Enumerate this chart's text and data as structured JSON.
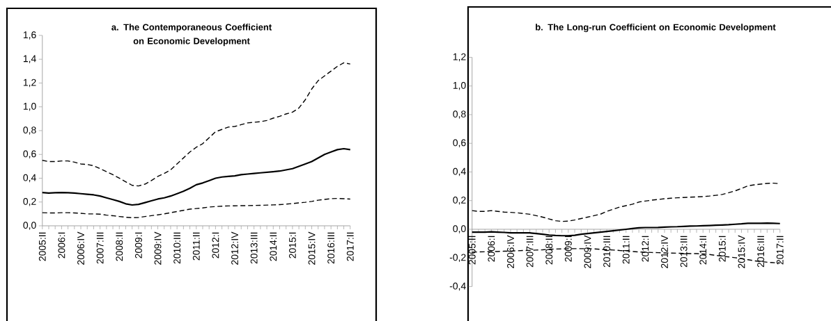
{
  "chart_data": [
    {
      "type": "line",
      "title": "a. The Contemporaneous Coefficient on Economic Development",
      "categories": [
        "2005:II",
        null,
        null,
        "2006:I",
        null,
        null,
        "2006:IV",
        null,
        null,
        "2007:III",
        null,
        null,
        "2008:II",
        null,
        null,
        "2009:I",
        null,
        null,
        "2009:IV",
        null,
        null,
        "2010:III",
        null,
        null,
        "2011:II",
        null,
        null,
        "2012:I",
        null,
        null,
        "2012:IV",
        null,
        null,
        "2013:III",
        null,
        null,
        "2014:II",
        null,
        null,
        "2015:I",
        null,
        null,
        "2015:IV",
        null,
        null,
        "2016:III",
        null,
        null,
        "2017:II"
      ],
      "series": [
        {
          "color": "#000000",
          "line_style": "dashed",
          "values": [
            0.55,
            0.54,
            0.54,
            0.545,
            0.545,
            0.535,
            0.52,
            0.515,
            0.505,
            0.48,
            0.455,
            0.43,
            0.4,
            0.37,
            0.34,
            0.335,
            0.35,
            0.38,
            0.415,
            0.44,
            0.47,
            0.52,
            0.57,
            0.62,
            0.66,
            0.69,
            0.74,
            0.79,
            0.81,
            0.83,
            0.835,
            0.85,
            0.865,
            0.87,
            0.875,
            0.885,
            0.905,
            0.92,
            0.94,
            0.955,
            0.99,
            1.06,
            1.15,
            1.22,
            1.26,
            1.3,
            1.34,
            1.37,
            1.36
          ]
        },
        {
          "color": "#000000",
          "line_style": "solid",
          "values": [
            0.28,
            0.275,
            0.278,
            0.28,
            0.278,
            0.275,
            0.27,
            0.265,
            0.26,
            0.25,
            0.235,
            0.22,
            0.205,
            0.185,
            0.175,
            0.18,
            0.195,
            0.21,
            0.225,
            0.235,
            0.25,
            0.27,
            0.29,
            0.315,
            0.345,
            0.36,
            0.38,
            0.4,
            0.41,
            0.415,
            0.42,
            0.43,
            0.435,
            0.44,
            0.445,
            0.45,
            0.455,
            0.46,
            0.47,
            0.48,
            0.5,
            0.52,
            0.54,
            0.57,
            0.6,
            0.62,
            0.64,
            0.648,
            0.64
          ]
        },
        {
          "color": "#000000",
          "line_style": "dashed",
          "values": [
            0.11,
            0.108,
            0.108,
            0.11,
            0.11,
            0.108,
            0.105,
            0.1,
            0.1,
            0.098,
            0.09,
            0.085,
            0.078,
            0.072,
            0.068,
            0.07,
            0.078,
            0.085,
            0.092,
            0.1,
            0.11,
            0.12,
            0.13,
            0.14,
            0.145,
            0.15,
            0.158,
            0.162,
            0.165,
            0.167,
            0.168,
            0.169,
            0.17,
            0.171,
            0.172,
            0.174,
            0.176,
            0.178,
            0.182,
            0.187,
            0.193,
            0.198,
            0.205,
            0.215,
            0.222,
            0.228,
            0.23,
            0.228,
            0.225
          ]
        }
      ],
      "ylim": [
        0,
        1.6
      ],
      "yticks": [
        {
          "value": 0,
          "label": "0,0"
        },
        {
          "value": 0.2,
          "label": "0,2"
        },
        {
          "value": 0.4,
          "label": "0,4"
        },
        {
          "value": 0.6,
          "label": "0,6"
        },
        {
          "value": 0.8,
          "label": "0,8"
        },
        {
          "value": 1.0,
          "label": "1,0"
        },
        {
          "value": 1.2,
          "label": "1,2"
        },
        {
          "value": 1.4,
          "label": "1,4"
        },
        {
          "value": 1.6,
          "label": "1,6"
        }
      ],
      "grid": false
    },
    {
      "type": "line",
      "title": "b. The Long-run Coefficient on Economic Development",
      "categories": [
        "2005:II",
        null,
        null,
        "2006:I",
        null,
        null,
        "2006:IV",
        null,
        null,
        "2007:III",
        null,
        null,
        "2008:II",
        null,
        null,
        "2009:I",
        null,
        null,
        "2009:IV",
        null,
        null,
        "2010:III",
        null,
        null,
        "2011:II",
        null,
        null,
        "2012:I",
        null,
        null,
        "2012:IV",
        null,
        null,
        "2013:III",
        null,
        null,
        "2014:II",
        null,
        null,
        "2015:I",
        null,
        null,
        "2015:IV",
        null,
        null,
        "2016:III",
        null,
        null,
        "2017:II"
      ],
      "series": [
        {
          "color": "#000000",
          "line_style": "dashed",
          "values": [
            0.13,
            0.125,
            0.125,
            0.13,
            0.125,
            0.12,
            0.118,
            0.115,
            0.11,
            0.105,
            0.095,
            0.085,
            0.072,
            0.06,
            0.055,
            0.057,
            0.065,
            0.075,
            0.085,
            0.095,
            0.105,
            0.125,
            0.14,
            0.155,
            0.165,
            0.175,
            0.19,
            0.197,
            0.203,
            0.208,
            0.213,
            0.217,
            0.22,
            0.222,
            0.224,
            0.226,
            0.228,
            0.232,
            0.237,
            0.243,
            0.255,
            0.268,
            0.285,
            0.303,
            0.31,
            0.315,
            0.32,
            0.322,
            0.318
          ]
        },
        {
          "color": "#000000",
          "line_style": "solid",
          "values": [
            -0.02,
            -0.02,
            -0.02,
            -0.018,
            -0.02,
            -0.022,
            -0.025,
            -0.025,
            -0.025,
            -0.025,
            -0.03,
            -0.035,
            -0.04,
            -0.043,
            -0.045,
            -0.045,
            -0.042,
            -0.035,
            -0.03,
            -0.025,
            -0.02,
            -0.015,
            -0.01,
            -0.005,
            0,
            0.005,
            0.01,
            0.012,
            0.012,
            0.013,
            0.015,
            0.017,
            0.018,
            0.02,
            0.022,
            0.023,
            0.025,
            0.026,
            0.028,
            0.03,
            0.032,
            0.035,
            0.038,
            0.042,
            0.042,
            0.042,
            0.043,
            0.042,
            0.04
          ]
        },
        {
          "color": "#000000",
          "line_style": "dashed",
          "values": [
            -0.16,
            -0.158,
            -0.157,
            -0.156,
            -0.155,
            -0.153,
            -0.152,
            -0.15,
            -0.148,
            -0.147,
            -0.145,
            -0.143,
            -0.14,
            -0.138,
            -0.137,
            -0.135,
            -0.135,
            -0.135,
            -0.135,
            -0.137,
            -0.14,
            -0.142,
            -0.145,
            -0.148,
            -0.15,
            -0.155,
            -0.158,
            -0.16,
            -0.162,
            -0.163,
            -0.165,
            -0.166,
            -0.167,
            -0.168,
            -0.17,
            -0.17,
            -0.172,
            -0.176,
            -0.182,
            -0.188,
            -0.193,
            -0.198,
            -0.205,
            -0.212,
            -0.22,
            -0.225,
            -0.23,
            -0.233,
            -0.235
          ]
        }
      ],
      "ylim": [
        -0.4,
        1.2
      ],
      "yticks": [
        {
          "value": -0.4,
          "label": "-0,4"
        },
        {
          "value": -0.2,
          "label": "-0,2"
        },
        {
          "value": 0,
          "label": "0,0"
        },
        {
          "value": 0.2,
          "label": "0,2"
        },
        {
          "value": 0.4,
          "label": "0,4"
        },
        {
          "value": 0.6,
          "label": "0,6"
        },
        {
          "value": 0.8,
          "label": "0,8"
        },
        {
          "value": 1.0,
          "label": "1,0"
        },
        {
          "value": 1.2,
          "label": "1,2"
        }
      ],
      "grid": false
    }
  ]
}
